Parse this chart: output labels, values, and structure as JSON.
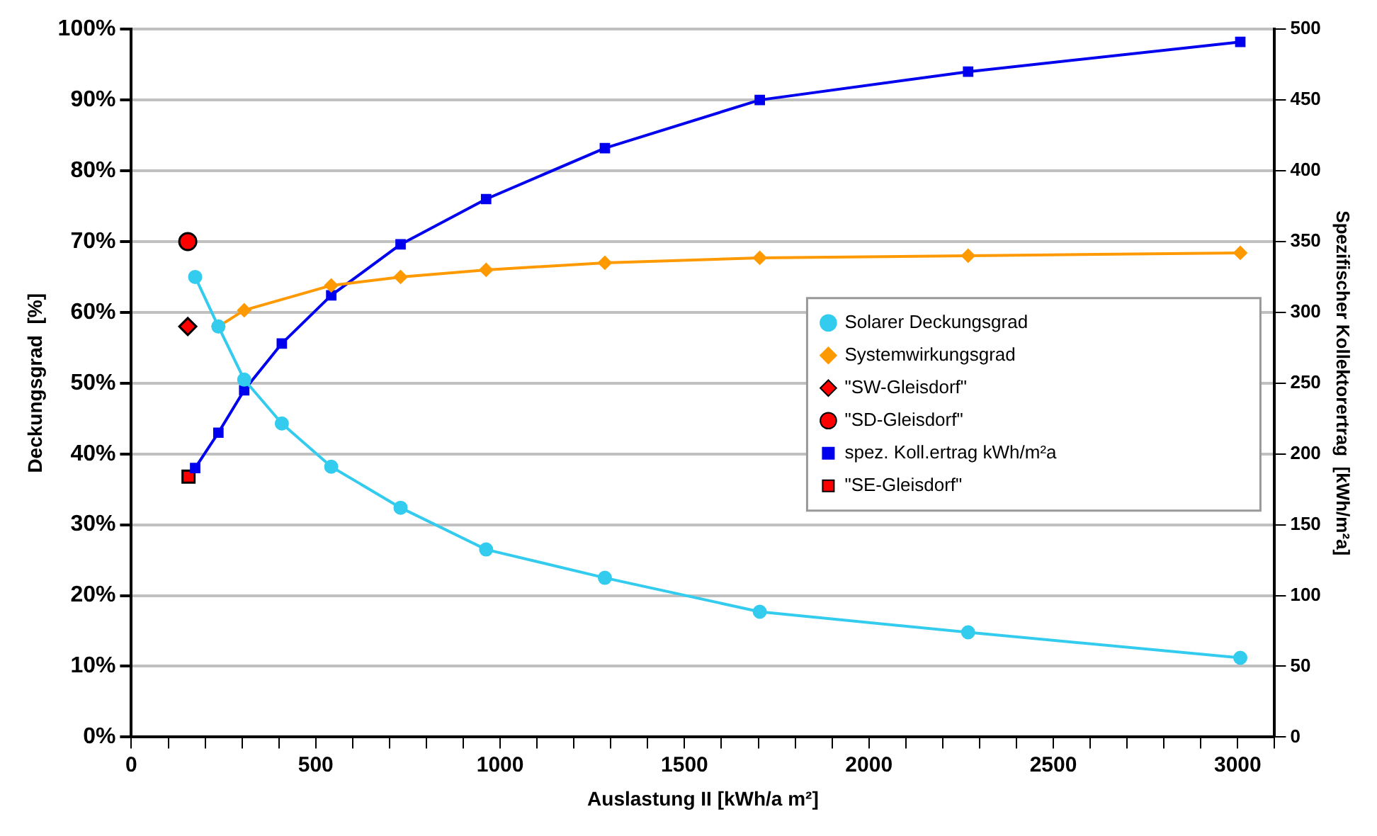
{
  "chart_data": {
    "type": "line",
    "xlabel": "Auslastung II [kWh/a m²]",
    "ylabel": "Deckungsgrad  [%]",
    "y2label": "Spezifischer Kollektorertrag  [kWh/m²a]",
    "xlim": [
      0,
      3100
    ],
    "xticks": [
      {
        "value": 0,
        "label": "0"
      },
      {
        "value": 100,
        "label": null
      },
      {
        "value": 200,
        "label": null
      },
      {
        "value": 300,
        "label": null
      },
      {
        "value": 400,
        "label": null
      },
      {
        "value": 500,
        "label": "500"
      },
      {
        "value": 600,
        "label": null
      },
      {
        "value": 700,
        "label": null
      },
      {
        "value": 800,
        "label": null
      },
      {
        "value": 900,
        "label": null
      },
      {
        "value": 1000,
        "label": "1000"
      },
      {
        "value": 1100,
        "label": null
      },
      {
        "value": 1200,
        "label": null
      },
      {
        "value": 1300,
        "label": null
      },
      {
        "value": 1400,
        "label": null
      },
      {
        "value": 1500,
        "label": "1500"
      },
      {
        "value": 1600,
        "label": null
      },
      {
        "value": 1700,
        "label": null
      },
      {
        "value": 1800,
        "label": null
      },
      {
        "value": 1900,
        "label": null
      },
      {
        "value": 2000,
        "label": "2000"
      },
      {
        "value": 2100,
        "label": null
      },
      {
        "value": 2200,
        "label": null
      },
      {
        "value": 2300,
        "label": null
      },
      {
        "value": 2400,
        "label": null
      },
      {
        "value": 2500,
        "label": "2500"
      },
      {
        "value": 2600,
        "label": null
      },
      {
        "value": 2700,
        "label": null
      },
      {
        "value": 2800,
        "label": null
      },
      {
        "value": 2900,
        "label": null
      },
      {
        "value": 3000,
        "label": "3000"
      },
      {
        "value": 3100,
        "label": null
      }
    ],
    "ylim": [
      0,
      100
    ],
    "yticks": [
      {
        "value": 0,
        "label": "0%"
      },
      {
        "value": 10,
        "label": "10%"
      },
      {
        "value": 20,
        "label": "20%"
      },
      {
        "value": 30,
        "label": "30%"
      },
      {
        "value": 40,
        "label": "40%"
      },
      {
        "value": 50,
        "label": "50%"
      },
      {
        "value": 60,
        "label": "60%"
      },
      {
        "value": 70,
        "label": "70%"
      },
      {
        "value": 80,
        "label": "80%"
      },
      {
        "value": 90,
        "label": "90%"
      },
      {
        "value": 100,
        "label": "100%"
      }
    ],
    "y2lim": [
      0,
      500
    ],
    "y2ticks": [
      0,
      50,
      100,
      150,
      200,
      250,
      300,
      350,
      400,
      450,
      500
    ],
    "grid": "y",
    "legend": "right",
    "series": [
      {
        "name": "Solarer Deckungsgrad",
        "color": "#33ccee",
        "marker": "circle",
        "x": [
          173,
          236,
          306,
          408,
          542,
          730,
          962,
          1284,
          1704,
          2269,
          3007
        ],
        "values": [
          65,
          58,
          50.5,
          44.3,
          38.2,
          32.4,
          26.5,
          22.5,
          17.7,
          14.8,
          11.2
        ]
      },
      {
        "name": "Systemwirkungsgrad",
        "color": "#ff9900",
        "marker": "diamond",
        "x": [
          236,
          306,
          542,
          730,
          962,
          1284,
          1704,
          2269,
          3007
        ],
        "values": [
          58,
          60.3,
          63.8,
          65,
          66,
          67,
          67.7,
          68,
          68.4
        ]
      },
      {
        "name": "\"SW-Gleisdorf\"",
        "type": "scatter",
        "color": "#ff0000",
        "marker": "diamond",
        "x": [
          153
        ],
        "values": [
          58
        ]
      },
      {
        "name": "\"SD-Gleisdorf\"",
        "type": "scatter",
        "color": "#ff0000",
        "marker": "circle",
        "x": [
          153
        ],
        "values": [
          70
        ]
      },
      {
        "name": "spez. Koll.ertrag kWh/m²a",
        "color": "#0000ee",
        "marker": "square",
        "axis": "y2",
        "x": [
          173,
          236,
          306,
          408,
          542,
          730,
          962,
          1284,
          1704,
          2269,
          3007
        ],
        "values": [
          190,
          215,
          245,
          278,
          312,
          348,
          380,
          416,
          450,
          470,
          491
        ]
      },
      {
        "name": "\"SE-Gleisdorf\"",
        "type": "scatter",
        "color": "#ff0000",
        "marker": "square",
        "axis": "y2",
        "x": [
          155
        ],
        "values": [
          184
        ]
      }
    ]
  }
}
